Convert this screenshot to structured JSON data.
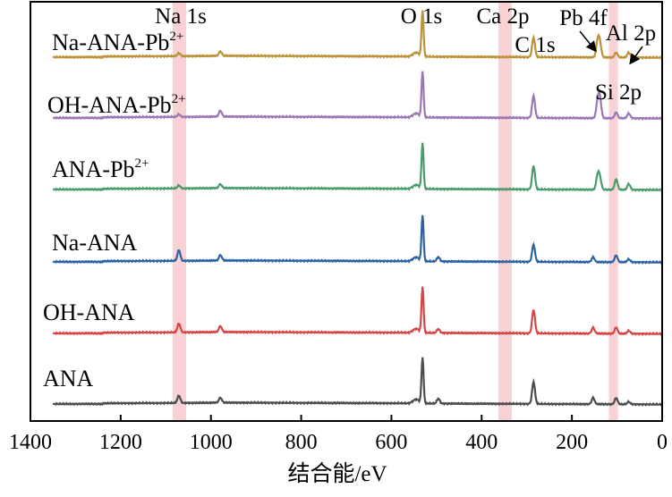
{
  "chart_data": {
    "type": "line",
    "title": "",
    "xlabel": "结合能/eV",
    "ylabel": "",
    "xlim": [
      1400,
      0
    ],
    "x_reversed": true,
    "xticks": [
      "1400",
      "1200",
      "1000",
      "800",
      "600",
      "400",
      "200",
      "0"
    ],
    "grid": false,
    "highlight_bands": [
      {
        "name": "Na 1s",
        "x_range": [
          1085,
          1055
        ],
        "color": "#f6c3c6"
      },
      {
        "name": "Ca 2p",
        "x_range": [
          363,
          333
        ],
        "color": "#f6c3c6"
      },
      {
        "name": "Si 2p",
        "x_range": [
          118,
          98
        ],
        "color": "#f6c3c6"
      }
    ],
    "peak_annotations": [
      {
        "label": "Na 1s",
        "x": 1071
      },
      {
        "label": "O 1s",
        "x": 531
      },
      {
        "label": "Ca 2p",
        "x": 347
      },
      {
        "label": "C 1s",
        "x": 285
      },
      {
        "label": "Pb 4f",
        "x": 139
      },
      {
        "label": "Al 2p",
        "x": 74
      },
      {
        "label": "Si 2p",
        "x": 102
      }
    ],
    "series": [
      {
        "name": "Na-ANA-Pb",
        "superscript": "2+",
        "color": "#bb9237",
        "peaks": [
          [
            1071,
            0.06
          ],
          [
            979,
            0.09
          ],
          [
            531,
            0.95
          ],
          [
            285,
            0.4
          ],
          [
            143,
            0.32
          ],
          [
            138,
            0.28
          ],
          [
            102,
            0.1
          ],
          [
            74,
            0.1
          ]
        ]
      },
      {
        "name": "OH-ANA-Pb",
        "superscript": "2+",
        "color": "#9b77b4",
        "peaks": [
          [
            1071,
            0.05
          ],
          [
            979,
            0.12
          ],
          [
            531,
            0.95
          ],
          [
            285,
            0.45
          ],
          [
            143,
            0.32
          ],
          [
            138,
            0.38
          ],
          [
            102,
            0.12
          ],
          [
            74,
            0.1
          ]
        ]
      },
      {
        "name": "ANA-Pb",
        "superscript": "2+",
        "color": "#4a9c6c",
        "peaks": [
          [
            1071,
            0.06
          ],
          [
            979,
            0.08
          ],
          [
            531,
            0.95
          ],
          [
            285,
            0.48
          ],
          [
            143,
            0.28
          ],
          [
            138,
            0.22
          ],
          [
            102,
            0.22
          ],
          [
            74,
            0.12
          ]
        ]
      },
      {
        "name": "Na-ANA",
        "superscript": "",
        "color": "#2d62a3",
        "peaks": [
          [
            1071,
            0.22
          ],
          [
            979,
            0.11
          ],
          [
            531,
            0.95
          ],
          [
            496,
            0.09
          ],
          [
            285,
            0.35
          ],
          [
            153,
            0.1
          ],
          [
            102,
            0.14
          ],
          [
            74,
            0.06
          ]
        ]
      },
      {
        "name": "OH-ANA",
        "superscript": "",
        "color": "#d64545",
        "peaks": [
          [
            1071,
            0.18
          ],
          [
            979,
            0.12
          ],
          [
            531,
            0.95
          ],
          [
            496,
            0.08
          ],
          [
            285,
            0.48
          ],
          [
            153,
            0.12
          ],
          [
            102,
            0.13
          ],
          [
            74,
            0.06
          ]
        ]
      },
      {
        "name": "ANA",
        "superscript": "",
        "color": "#4d4d4d",
        "peaks": [
          [
            1071,
            0.15
          ],
          [
            979,
            0.1
          ],
          [
            531,
            0.95
          ],
          [
            496,
            0.1
          ],
          [
            285,
            0.45
          ],
          [
            153,
            0.13
          ],
          [
            102,
            0.13
          ],
          [
            74,
            0.05
          ]
        ]
      }
    ]
  }
}
